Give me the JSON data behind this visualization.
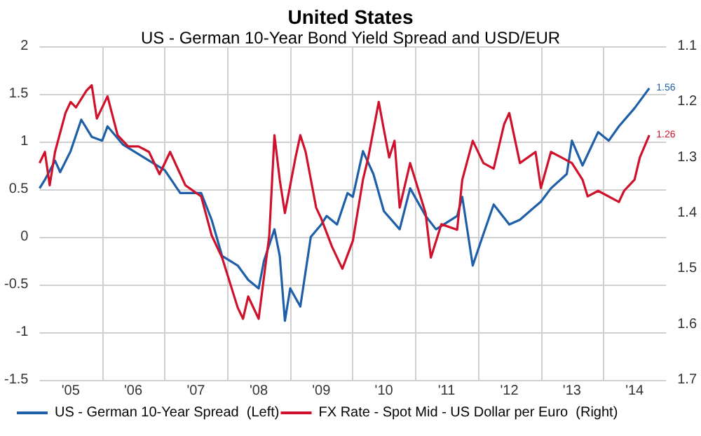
{
  "chart_data": {
    "type": "line",
    "title": "United States",
    "subtitle": "US - German 10-Year Bond Yield Spread and USD/EUR",
    "xlim": [
      "2005-01-01",
      "2015-01-01"
    ],
    "xticks": [
      {
        "value": "2005-07-01",
        "label": "'05"
      },
      {
        "value": "2006-01-01",
        "label": null
      },
      {
        "value": "2006-07-01",
        "label": "'06"
      },
      {
        "value": "2007-01-01",
        "label": null
      },
      {
        "value": "2007-07-01",
        "label": "'07"
      },
      {
        "value": "2008-01-01",
        "label": null
      },
      {
        "value": "2008-07-01",
        "label": "'08"
      },
      {
        "value": "2009-01-01",
        "label": null
      },
      {
        "value": "2009-07-01",
        "label": "'09"
      },
      {
        "value": "2010-01-01",
        "label": null
      },
      {
        "value": "2010-07-01",
        "label": "'10"
      },
      {
        "value": "2011-01-01",
        "label": null
      },
      {
        "value": "2011-07-01",
        "label": "'11"
      },
      {
        "value": "2012-01-01",
        "label": null
      },
      {
        "value": "2012-07-01",
        "label": "'12"
      },
      {
        "value": "2013-01-01",
        "label": null
      },
      {
        "value": "2013-07-01",
        "label": "'13"
      },
      {
        "value": "2014-01-01",
        "label": null
      },
      {
        "value": "2014-07-01",
        "label": "'14"
      }
    ],
    "ylim": [
      -1.5,
      2
    ],
    "yticks": [
      -1.5,
      -1,
      -0.5,
      0,
      0.5,
      1,
      1.5,
      2
    ],
    "y2lim": [
      1.7,
      1.1
    ],
    "y2ticks": [
      1.1,
      1.2,
      1.3,
      1.4,
      1.5,
      1.6,
      1.7
    ],
    "grid": true,
    "legend": "bottom left",
    "marker": "none",
    "line_style": "solid",
    "series": [
      {
        "name": "US - German 10-Year Spread  (Left)",
        "color": "#1f5fa8",
        "x": [
          "2005-01",
          "2005-02",
          "2005-04",
          "2005-05",
          "2005-07",
          "2005-09",
          "2005-11",
          "2006-01",
          "2006-02",
          "2006-05",
          "2006-10",
          "2007-01",
          "2007-04",
          "2007-08",
          "2007-10",
          "2007-12",
          "2008-03",
          "2008-05",
          "2008-07",
          "2008-08",
          "2008-10",
          "2008-11",
          "2008-12",
          "2009-01",
          "2009-03",
          "2009-05",
          "2009-07",
          "2009-08",
          "2009-10",
          "2009-12",
          "2010-01",
          "2010-03",
          "2010-05",
          "2010-07",
          "2010-10",
          "2010-12",
          "2011-03",
          "2011-05",
          "2011-09",
          "2011-10",
          "2011-12",
          "2012-02",
          "2012-04",
          "2012-07",
          "2012-09",
          "2013-01",
          "2013-03",
          "2013-06",
          "2013-07",
          "2013-09",
          "2013-12",
          "2014-02",
          "2014-04",
          "2014-07",
          "2014-09-25"
        ],
        "values": [
          0.51,
          0.6,
          0.8,
          0.68,
          0.9,
          1.23,
          1.05,
          1.01,
          1.16,
          0.97,
          0.8,
          0.7,
          0.46,
          0.46,
          0.18,
          -0.2,
          -0.3,
          -0.45,
          -0.54,
          -0.25,
          0.08,
          -0.2,
          -0.88,
          -0.54,
          -0.73,
          0,
          0.13,
          0.22,
          0.13,
          0.46,
          0.42,
          0.9,
          0.66,
          0.27,
          0.08,
          0.51,
          0.22,
          0.08,
          0.22,
          0.42,
          -0.3,
          0.03,
          0.34,
          0.13,
          0.18,
          0.37,
          0.51,
          0.66,
          1.01,
          0.75,
          1.1,
          1.01,
          1.16,
          1.35,
          1.56
        ],
        "value_labels": [
          null,
          null,
          null,
          null,
          null,
          null,
          null,
          null,
          null,
          null,
          null,
          null,
          null,
          null,
          null,
          null,
          null,
          null,
          null,
          null,
          null,
          null,
          null,
          null,
          null,
          null,
          null,
          null,
          null,
          null,
          null,
          null,
          null,
          null,
          null,
          null,
          null,
          null,
          null,
          null,
          null,
          null,
          null,
          null,
          null,
          null,
          null,
          null,
          null,
          null,
          null,
          null,
          null,
          null,
          "1.56"
        ]
      },
      {
        "name": "FX Rate - Spot Mid - US Dollar per Euro  (Right)",
        "color": "#d0112b",
        "axis": "y2",
        "x": [
          "2005-01",
          "2005-02",
          "2005-03",
          "2005-04",
          "2005-06",
          "2005-07",
          "2005-08",
          "2005-10",
          "2005-11",
          "2005-12",
          "2006-02",
          "2006-04",
          "2006-06",
          "2006-08",
          "2006-10",
          "2006-12",
          "2007-02",
          "2007-05",
          "2007-08",
          "2007-10",
          "2007-12",
          "2008-03",
          "2008-04",
          "2008-05",
          "2008-07",
          "2008-09",
          "2008-10",
          "2008-11",
          "2008-12",
          "2009-02",
          "2009-03",
          "2009-04",
          "2009-06",
          "2009-07",
          "2009-09",
          "2009-11",
          "2010-01",
          "2010-03",
          "2010-04",
          "2010-06",
          "2010-07",
          "2010-08",
          "2010-09",
          "2010-10",
          "2010-12",
          "2011-03",
          "2011-04",
          "2011-06",
          "2011-09",
          "2011-10",
          "2011-12",
          "2012-02",
          "2012-04",
          "2012-06",
          "2012-07",
          "2012-09",
          "2012-12",
          "2013-01",
          "2013-03",
          "2013-05",
          "2013-07",
          "2013-09",
          "2013-10",
          "2013-12",
          "2014-04",
          "2014-05",
          "2014-07",
          "2014-08",
          "2014-09-25"
        ],
        "values": [
          1.31,
          1.29,
          1.35,
          1.29,
          1.22,
          1.2,
          1.21,
          1.18,
          1.17,
          1.23,
          1.19,
          1.26,
          1.28,
          1.28,
          1.29,
          1.33,
          1.29,
          1.35,
          1.37,
          1.44,
          1.48,
          1.57,
          1.59,
          1.55,
          1.59,
          1.44,
          1.26,
          1.34,
          1.4,
          1.3,
          1.26,
          1.29,
          1.39,
          1.41,
          1.46,
          1.5,
          1.45,
          1.34,
          1.3,
          1.2,
          1.25,
          1.3,
          1.27,
          1.39,
          1.31,
          1.4,
          1.48,
          1.42,
          1.43,
          1.34,
          1.27,
          1.31,
          1.32,
          1.24,
          1.22,
          1.31,
          1.29,
          1.355,
          1.29,
          1.3,
          1.31,
          1.34,
          1.37,
          1.36,
          1.38,
          1.36,
          1.34,
          1.3,
          1.26
        ],
        "value_labels": [
          null,
          null,
          null,
          null,
          null,
          null,
          null,
          null,
          null,
          null,
          null,
          null,
          null,
          null,
          null,
          null,
          null,
          null,
          null,
          null,
          null,
          null,
          null,
          null,
          null,
          null,
          null,
          null,
          null,
          null,
          null,
          null,
          null,
          null,
          null,
          null,
          null,
          null,
          null,
          null,
          null,
          null,
          null,
          null,
          null,
          null,
          null,
          null,
          null,
          null,
          null,
          null,
          null,
          null,
          null,
          null,
          null,
          null,
          null,
          null,
          null,
          null,
          null,
          null,
          null,
          null,
          null,
          null,
          "1.26"
        ]
      }
    ]
  }
}
